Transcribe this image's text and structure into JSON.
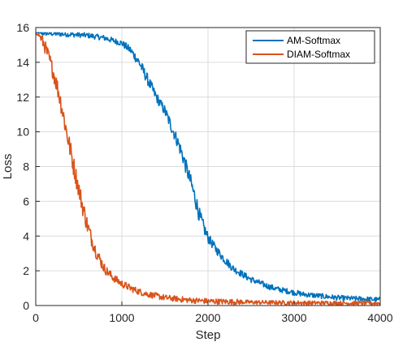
{
  "chart_data": {
    "type": "line",
    "title": "",
    "xlabel": "Step",
    "ylabel": "Loss",
    "xlim": [
      0,
      4000
    ],
    "ylim": [
      0,
      16
    ],
    "xticks": [
      0,
      1000,
      2000,
      3000,
      4000
    ],
    "yticks": [
      0,
      2,
      4,
      6,
      8,
      10,
      12,
      14,
      16
    ],
    "grid": true,
    "legend_position": "top-right",
    "noise": "high-frequency step-to-step noise on both series",
    "series": [
      {
        "name": "AM-Softmax",
        "color": "#0072BD",
        "x": [
          0,
          200,
          400,
          600,
          800,
          1000,
          1100,
          1200,
          1300,
          1400,
          1500,
          1550,
          1600,
          1650,
          1700,
          1750,
          1800,
          1850,
          1900,
          1950,
          2000,
          2100,
          2200,
          2300,
          2400,
          2500,
          2600,
          2700,
          2800,
          2900,
          3000,
          3100,
          3200,
          3300,
          3400,
          3500,
          3600,
          3700,
          3800,
          3900,
          4000
        ],
        "y": [
          15.7,
          15.65,
          15.6,
          15.55,
          15.4,
          15.1,
          14.7,
          14.0,
          13.0,
          12.0,
          11.2,
          10.6,
          10.0,
          9.4,
          8.7,
          7.9,
          7.1,
          6.2,
          5.2,
          4.5,
          3.9,
          3.2,
          2.6,
          2.1,
          1.8,
          1.5,
          1.3,
          1.1,
          0.95,
          0.85,
          0.75,
          0.65,
          0.6,
          0.55,
          0.5,
          0.45,
          0.42,
          0.4,
          0.38,
          0.35,
          0.33
        ]
      },
      {
        "name": "DIAM-Softmax",
        "color": "#D95319",
        "x": [
          0,
          50,
          100,
          150,
          200,
          250,
          300,
          350,
          400,
          450,
          500,
          550,
          600,
          650,
          700,
          750,
          800,
          900,
          1000,
          1100,
          1200,
          1300,
          1400,
          1500,
          1600,
          1700,
          1800,
          1900,
          2000,
          2200,
          2400,
          2600,
          2800,
          3000,
          3200,
          3400,
          3600,
          3800,
          4000
        ],
        "y": [
          15.7,
          15.5,
          15.0,
          14.3,
          13.5,
          12.6,
          11.5,
          10.2,
          9.0,
          7.8,
          6.7,
          5.6,
          4.6,
          3.8,
          3.1,
          2.6,
          2.1,
          1.6,
          1.25,
          1.0,
          0.8,
          0.65,
          0.55,
          0.45,
          0.4,
          0.35,
          0.3,
          0.28,
          0.25,
          0.22,
          0.2,
          0.18,
          0.17,
          0.16,
          0.15,
          0.15,
          0.14,
          0.14,
          0.13
        ]
      }
    ]
  }
}
